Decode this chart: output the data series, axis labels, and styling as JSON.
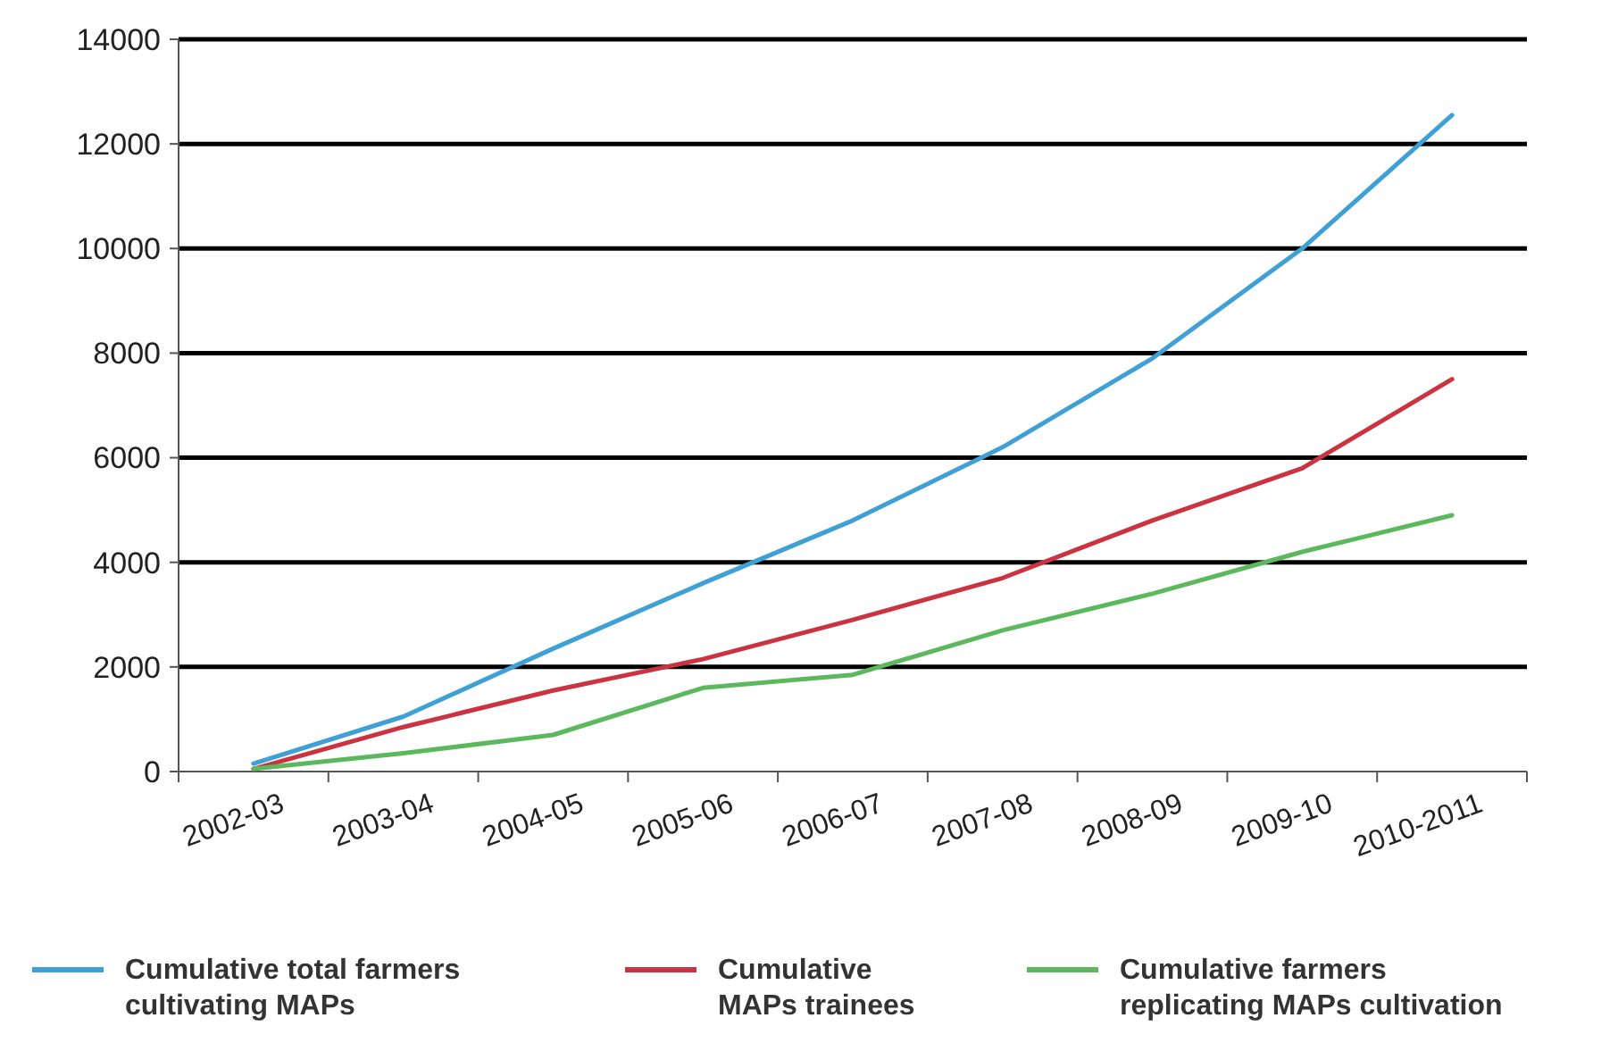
{
  "chart_data": {
    "type": "line",
    "categories": [
      "2002-03",
      "2003-04",
      "2004-05",
      "2005-06",
      "2006-07",
      "2007-08",
      "2008-09",
      "2009-10",
      "2010-2011"
    ],
    "series": [
      {
        "name": "Cumulative total farmers cultivating MAPs",
        "color": "#3fa0d6",
        "values": [
          150,
          1050,
          2350,
          3600,
          4800,
          6200,
          7900,
          10000,
          12550
        ]
      },
      {
        "name": "Cumulative MAPs trainees",
        "color": "#cc3340",
        "values": [
          50,
          850,
          1550,
          2150,
          2900,
          3700,
          4800,
          5800,
          7500
        ]
      },
      {
        "name": "Cumulative farmers replicating MAPs cultivation",
        "color": "#5cb85c",
        "values": [
          50,
          350,
          700,
          1600,
          1850,
          2700,
          3400,
          4200,
          4900
        ]
      }
    ],
    "ylim": [
      0,
      14000
    ],
    "yticks": [
      0,
      2000,
      4000,
      6000,
      8000,
      10000,
      12000,
      14000
    ],
    "grid": "y",
    "legend": "bottom",
    "marker": "none",
    "line_style": "solid"
  }
}
